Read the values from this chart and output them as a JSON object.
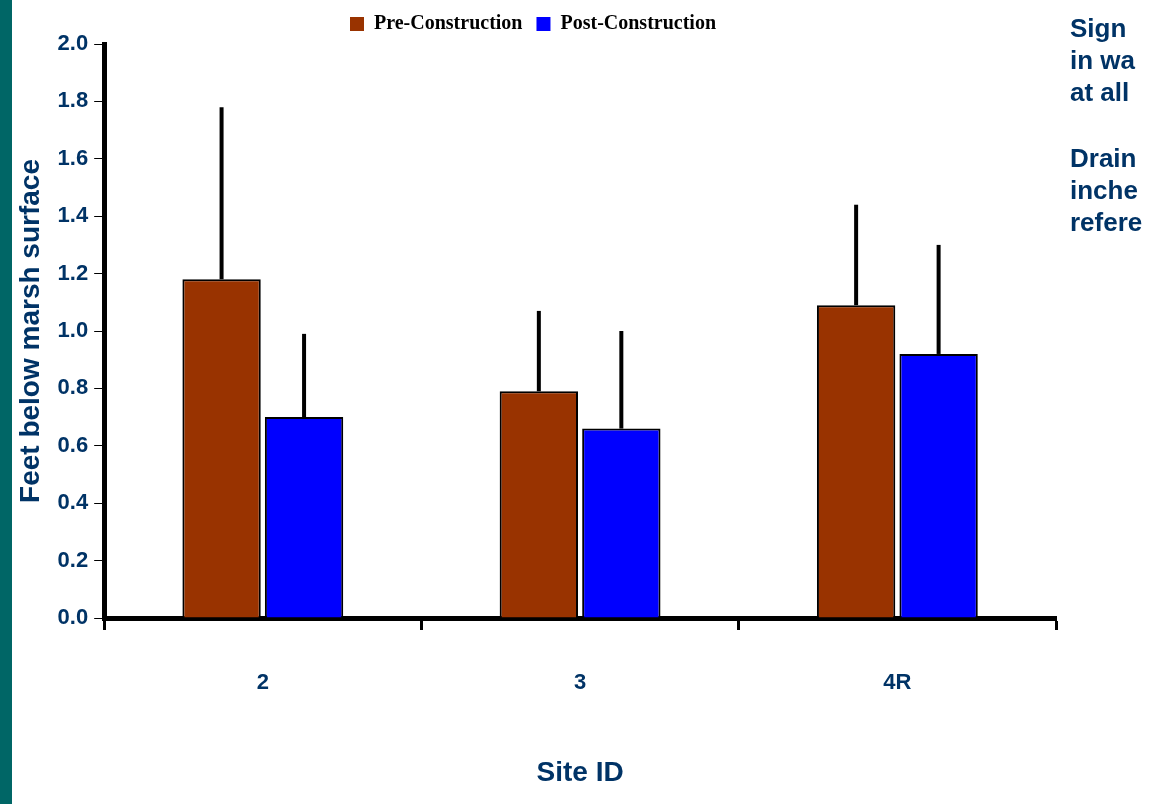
{
  "chart_data": {
    "type": "bar",
    "xlabel": "Site ID",
    "ylabel": "Feet below marsh surface",
    "categories": [
      "2",
      "3",
      "4R"
    ],
    "series": [
      {
        "name": "Pre-Construction",
        "color": "#993300",
        "values": [
          1.18,
          0.79,
          1.09
        ],
        "errors": [
          [
            1.18,
            1.78
          ],
          [
            0.79,
            1.07
          ],
          [
            1.09,
            1.44
          ]
        ]
      },
      {
        "name": "Post-Construction",
        "color": "#0000ff",
        "values": [
          0.7,
          0.66,
          0.92
        ],
        "errors": [
          [
            0.7,
            0.99
          ],
          [
            0.66,
            1.0
          ],
          [
            0.92,
            1.3
          ]
        ]
      }
    ],
    "ylim": [
      0,
      2
    ],
    "yticks": [
      {
        "value": 0,
        "label": "0.0"
      },
      0.2,
      0.4,
      0.6,
      0.8,
      {
        "value": 1,
        "label": "1.0"
      },
      1.2,
      1.4,
      1.6,
      1.8,
      {
        "value": 2,
        "label": "2.0"
      }
    ],
    "legend": "top",
    "grid": false,
    "annotations": [
      "Sign",
      "in wa",
      "at all",
      "Drain",
      "inche",
      "refere"
    ]
  }
}
